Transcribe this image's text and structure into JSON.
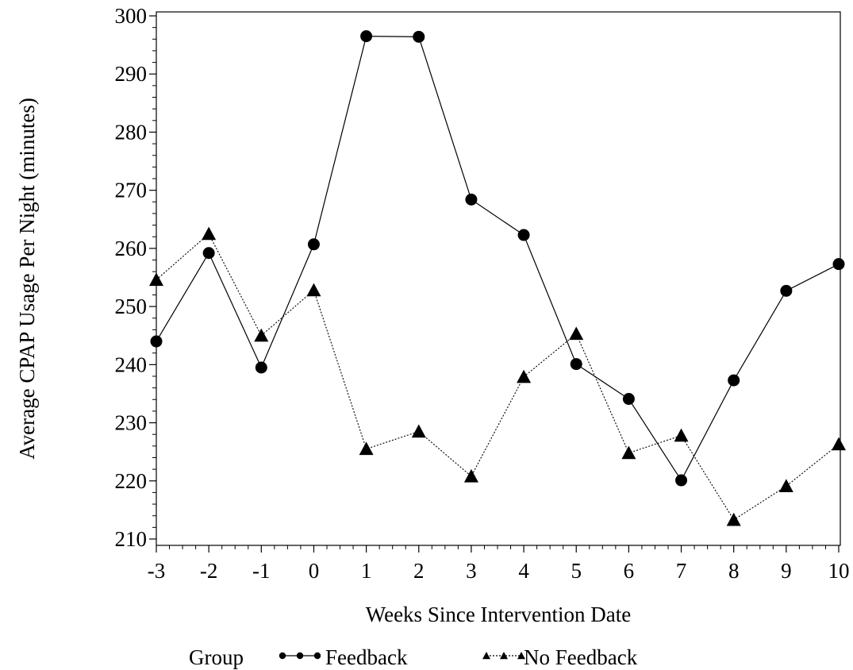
{
  "chart_data": {
    "type": "line",
    "title": "",
    "xlabel": "Weeks Since Intervention Date",
    "ylabel": "Average CPAP Usage Per Night (minutes)",
    "x": [
      -3,
      -2,
      -1,
      0,
      1,
      2,
      3,
      4,
      5,
      6,
      7,
      8,
      9,
      10
    ],
    "xlim": [
      -3,
      10
    ],
    "ylim": [
      210,
      300
    ],
    "xticks": [
      -3,
      -2,
      -1,
      0,
      1,
      2,
      3,
      4,
      5,
      6,
      7,
      8,
      9,
      10
    ],
    "yticks": [
      210,
      220,
      230,
      240,
      250,
      260,
      270,
      280,
      290,
      300
    ],
    "grid": false,
    "legend_title": "Group",
    "legend_position": "bottom",
    "series": [
      {
        "name": "Feedback",
        "marker": "circle",
        "line_style": "solid",
        "values": [
          244,
          259.2,
          239.5,
          260.7,
          296.5,
          296.4,
          268.4,
          262.3,
          240.1,
          234.1,
          220.1,
          237.3,
          252.7,
          257.3
        ]
      },
      {
        "name": "No Feedback",
        "marker": "triangle",
        "line_style": "dotted",
        "values": [
          254.6,
          262.5,
          245,
          252.8,
          225.5,
          228.5,
          220.8,
          237.9,
          245.3,
          224.8,
          227.8,
          213.3,
          219.1,
          226.3
        ]
      }
    ]
  }
}
